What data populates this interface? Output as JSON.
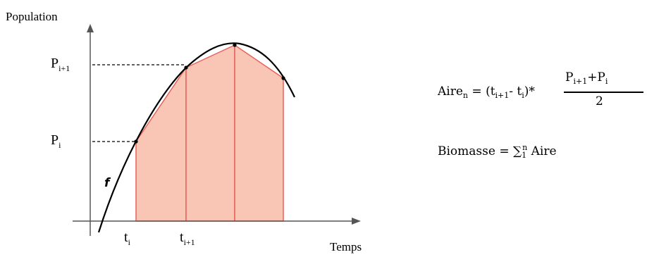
{
  "axes": {
    "y_title": "Population",
    "x_title": "Temps"
  },
  "curve_label": "f",
  "y_ticks": {
    "p_i_plus_1": {
      "base": "P",
      "sub": "i+1"
    },
    "p_i": {
      "base": "P",
      "sub": "i"
    }
  },
  "x_ticks": {
    "t_i": {
      "base": "t",
      "sub": "i"
    },
    "t_i_plus_1": {
      "base": "t",
      "sub": "i+1"
    }
  },
  "colors": {
    "fill": "#f9c6b5",
    "edge": "#e8615a",
    "curve": "#000000"
  },
  "formula_area": {
    "lhs_base": "Aire",
    "lhs_sub": "n",
    "equals": " = ",
    "paren_open": "(t",
    "t1_sub": "i+1",
    "minus": "- t",
    "t2_sub": "i",
    "paren_close": ")*",
    "numerator": "P",
    "num_sub1": "i+1",
    "plus": "+P",
    "num_sub2": "i",
    "denominator": "2"
  },
  "formula_biomass": {
    "lhs": "Biomasse",
    "equals": " = ",
    "sum_symbol": "∑",
    "sum_upper": "n",
    "sum_lower": "1",
    "term": " Aire"
  }
}
